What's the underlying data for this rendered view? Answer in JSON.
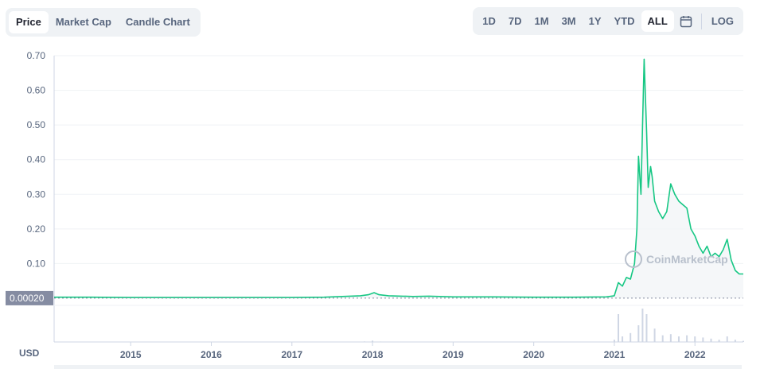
{
  "tabs": [
    {
      "label": "Price",
      "active": true
    },
    {
      "label": "Market Cap",
      "active": false
    },
    {
      "label": "Candle Chart",
      "active": false
    }
  ],
  "ranges": [
    {
      "label": "1D",
      "active": false
    },
    {
      "label": "7D",
      "active": false
    },
    {
      "label": "1M",
      "active": false
    },
    {
      "label": "3M",
      "active": false
    },
    {
      "label": "1Y",
      "active": false
    },
    {
      "label": "YTD",
      "active": false
    },
    {
      "label": "ALL",
      "active": true
    }
  ],
  "calendar_icon": "calendar-icon",
  "log_label": "LOG",
  "watermark": "CoinMarketCap",
  "current_price_label": "0.00020",
  "currency_label": "USD",
  "colors": {
    "line": "#16c784",
    "volume": "#cfd6e4",
    "badge": "#858ca2",
    "grid": "#eff2f5"
  },
  "chart_data": {
    "type": "line",
    "title": "",
    "xlabel": "",
    "ylabel": "",
    "ylim": [
      0,
      0.7
    ],
    "yticks": [
      "0.70",
      "0.60",
      "0.50",
      "0.40",
      "0.30",
      "0.20",
      "0.10"
    ],
    "xlim": [
      2014.05,
      2022.6
    ],
    "xticks": [
      "2015",
      "2016",
      "2017",
      "2018",
      "2019",
      "2020",
      "2021",
      "2022"
    ],
    "grid": true,
    "series": [
      {
        "x": [
          2014.05,
          2014.5,
          2015.0,
          2015.5,
          2016.0,
          2016.5,
          2017.0,
          2017.4,
          2017.85,
          2017.95,
          2018.02,
          2018.08,
          2018.2,
          2018.5,
          2018.7,
          2019.0,
          2019.5,
          2020.0,
          2020.5,
          2020.9,
          2021.0,
          2021.05,
          2021.1,
          2021.15,
          2021.2,
          2021.25,
          2021.28,
          2021.3,
          2021.33,
          2021.35,
          2021.37,
          2021.38,
          2021.4,
          2021.42,
          2021.45,
          2021.47,
          2021.5,
          2021.55,
          2021.6,
          2021.65,
          2021.7,
          2021.75,
          2021.8,
          2021.85,
          2021.9,
          2021.95,
          2022.0,
          2022.05,
          2022.1,
          2022.15,
          2022.2,
          2022.25,
          2022.3,
          2022.35,
          2022.4,
          2022.45,
          2022.5,
          2022.55,
          2022.6
        ],
        "values": [
          0.003,
          0.003,
          0.002,
          0.002,
          0.002,
          0.002,
          0.002,
          0.003,
          0.007,
          0.01,
          0.016,
          0.01,
          0.007,
          0.005,
          0.006,
          0.004,
          0.004,
          0.003,
          0.003,
          0.004,
          0.007,
          0.045,
          0.035,
          0.06,
          0.055,
          0.1,
          0.2,
          0.41,
          0.3,
          0.5,
          0.69,
          0.62,
          0.48,
          0.32,
          0.38,
          0.35,
          0.28,
          0.25,
          0.23,
          0.25,
          0.33,
          0.3,
          0.28,
          0.27,
          0.26,
          0.2,
          0.18,
          0.15,
          0.13,
          0.15,
          0.12,
          0.13,
          0.12,
          0.14,
          0.17,
          0.11,
          0.08,
          0.07,
          0.07
        ]
      }
    ],
    "volume": {
      "x": [
        2014.05,
        2017.9,
        2018.0,
        2018.1,
        2021.0,
        2021.05,
        2021.1,
        2021.2,
        2021.3,
        2021.35,
        2021.4,
        2021.5,
        2021.6,
        2021.7,
        2021.8,
        2021.9,
        2022.0,
        2022.1,
        2022.2,
        2022.3,
        2022.4,
        2022.5,
        2022.6
      ],
      "values": [
        0.0,
        0.005,
        0.012,
        0.004,
        0.02,
        0.25,
        0.05,
        0.08,
        0.15,
        0.3,
        0.25,
        0.12,
        0.06,
        0.07,
        0.05,
        0.06,
        0.05,
        0.04,
        0.03,
        0.02,
        0.05,
        0.02,
        0.01
      ]
    },
    "current_price": 0.0002
  }
}
